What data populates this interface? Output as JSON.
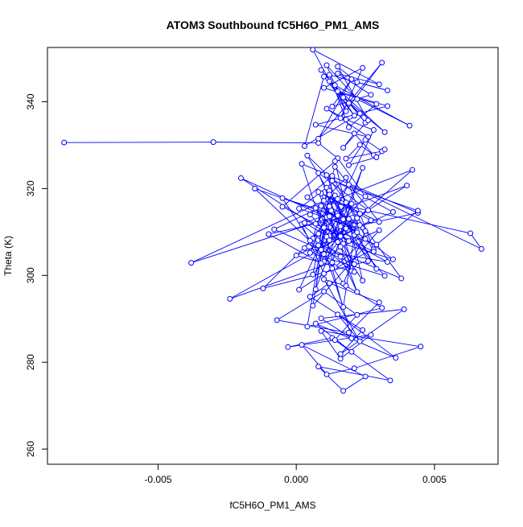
{
  "chart_data": {
    "type": "scatter",
    "title": "ATOM3 Southbound fC5H6O_PM1_AMS",
    "xlabel": "fC5H6O_PM1_AMS",
    "ylabel": "Theta (K)",
    "xlim": [
      -0.009,
      0.0073
    ],
    "ylim": [
      256.5,
      352.5
    ],
    "x_ticks": [
      -0.005,
      0.0,
      0.005
    ],
    "x_tick_labels": [
      "-0.005",
      "0.000",
      "0.005"
    ],
    "y_ticks": [
      260,
      280,
      300,
      320,
      340
    ],
    "y_tick_labels": [
      "260",
      "280",
      "300",
      "320",
      "340"
    ],
    "grid": false,
    "legend": "none",
    "connect_points": true,
    "marker": "open-circle",
    "color": "#0000ff",
    "series": [
      {
        "x": [
          -0.0084,
          -0.003,
          0.0008,
          0.0015,
          0.0025,
          0.0012,
          0.0005,
          0.0018,
          0.0028,
          0.001,
          0.0002,
          0.0016,
          0.0022,
          0.0009,
          0.003,
          0.0014,
          0.0006,
          0.002,
          0.0011,
          0.0001,
          0.0025,
          0.0017,
          0.0008,
          0.0035,
          0.0013,
          0.0004,
          0.0021,
          0.001,
          -0.0005,
          0.0019,
          0.0029,
          0.0012,
          0.0007,
          0.0024,
          0.0015,
          0.0003,
          0.004,
          0.0011,
          0.0018,
          0.0009,
          -0.001,
          0.0023,
          0.0014,
          0.0005,
          0.0032,
          0.0016,
          0.0008,
          0.0026,
          0.0012,
          0.0,
          0.0021,
          0.0015,
          -0.0038,
          0.001,
          0.0063,
          0.0067,
          0.0019,
          0.0007,
          0.0028,
          0.0013,
          0.0004,
          0.0022,
          0.0011,
          -0.002,
          0.0017,
          0.0035,
          0.0009,
          0.0025,
          0.0014,
          0.0002,
          0.0044,
          0.0018,
          0.001,
          -0.0015,
          0.0023,
          0.0012,
          0.0006,
          0.003,
          0.0016,
          0.0008,
          0.0027,
          -0.0024,
          0.0013,
          0.002,
          0.0005,
          0.0038,
          0.0011,
          0.0017,
          0.0009,
          0.0042,
          0.0015,
          -0.0008,
          0.0021,
          0.0012,
          0.0003,
          0.0033,
          0.0016,
          0.0007,
          0.0024,
          0.0014,
          -0.0005,
          0.0019,
          0.001,
          0.0029,
          0.0044,
          0.0013,
          0.0006,
          0.0022,
          0.0017,
          0.0008,
          -0.0012,
          0.0026,
          0.0012,
          0.0004,
          0.0031,
          0.0018,
          0.001,
          0.0023,
          0.0015,
          0.0036,
          0.0007,
          0.002,
          0.0013,
          -0.0003,
          0.0027,
          0.0016,
          0.0009,
          0.0045,
          0.0021,
          0.0011,
          0.0002,
          0.0025,
          0.0017,
          0.0008,
          0.0034,
          0.0014,
          0.0022,
          0.001,
          -0.0007,
          0.0019,
          0.003,
          0.0012,
          0.0005,
          0.0024,
          0.0016,
          0.0039,
          0.0009,
          0.002,
          0.0013,
          0.0001,
          0.0028,
          0.0018,
          0.0011,
          0.0026,
          0.0007,
          0.0033,
          0.0015,
          0.0021,
          0.001,
          0.0003,
          0.0023,
          0.0017,
          0.0032,
          0.0012,
          0.0019,
          0.0009,
          0.0025,
          0.0014,
          0.0041,
          0.0022,
          0.0011,
          0.0018,
          0.0006,
          0.003,
          0.0015,
          0.0027,
          0.0013,
          0.002,
          0.0008,
          0.0031,
          0.0016,
          0.0024,
          0.001,
          0.0029,
          0.0019,
          0.0012,
          0.0033,
          0.0022,
          0.0015,
          0.0026,
          0.0017,
          0.0021,
          0.0028,
          0.0023,
          0.0018,
          0.0031,
          0.0025,
          0.0019,
          0.0029,
          0.0032
        ],
        "y": [
          330.6,
          330.7,
          330.5,
          327.0,
          318.2,
          309.1,
          314.0,
          322.5,
          306.0,
          300.4,
          311.8,
          304.3,
          296.2,
          318.9,
          312.3,
          325.0,
          308.5,
          301.0,
          320.2,
          315.4,
          310.2,
          298.1,
          306.9,
          314.6,
          322.1,
          327.6,
          309.3,
          303.2,
          317.8,
          313.0,
          301.5,
          319.5,
          296.8,
          324.8,
          307.7,
          312.1,
          320.7,
          308.9,
          316.8,
          302.8,
          309.5,
          314.2,
          318.4,
          305.2,
          299.9,
          311.3,
          323.6,
          315.0,
          308.1,
          304.6,
          300.8,
          313.8,
          302.9,
          317.2,
          309.7,
          306.1,
          320.9,
          311.9,
          305.5,
          322.9,
          318.0,
          309.9,
          313.4,
          322.4,
          307.3,
          303.7,
          316.0,
          308.4,
          301.9,
          325.7,
          314.4,
          310.8,
          304.9,
          320.0,
          311.6,
          315.9,
          293.0,
          310.4,
          306.6,
          319.2,
          312.7,
          294.6,
          303.0,
          316.5,
          308.0,
          299.3,
          323.1,
          312.9,
          305.9,
          324.3,
          317.6,
          310.6,
          302.6,
          313.6,
          306.3,
          303.1,
          309.0,
          315.5,
          298.8,
          326.3,
          315.8,
          307.9,
          311.0,
          307.1,
          314.9,
          321.8,
          300.2,
          313.2,
          292.7,
          309.6,
          297.0,
          303.3,
          318.6,
          288.2,
          292.5,
          297.6,
          299.1,
          284.8,
          291.0,
          281.0,
          288.9,
          282.4,
          285.6,
          283.5,
          286.3,
          280.8,
          287.2,
          283.6,
          278.6,
          277.2,
          284.0,
          276.7,
          273.4,
          279.0,
          275.8,
          285.1,
          290.9,
          296.3,
          289.7,
          286.8,
          293.8,
          298.2,
          295.1,
          287.4,
          281.9,
          292.2,
          290.1,
          285.5,
          301.6,
          296.7,
          333.5,
          335.9,
          338.4,
          331.9,
          334.7,
          339.0,
          342.4,
          336.8,
          345.8,
          329.8,
          337.3,
          341.0,
          333.0,
          344.7,
          339.7,
          347.3,
          335.2,
          343.8,
          334.5,
          340.6,
          348.4,
          337.8,
          352.0,
          344.0,
          346.5,
          341.6,
          338.9,
          345.2,
          331.5,
          349.0,
          336.2,
          347.8,
          343.2,
          339.5,
          334.1,
          346.2,
          342.6,
          344.5,
          348.1,
          335.7,
          329.4,
          332.7,
          327.7,
          330.1,
          326.9,
          328.6,
          331.2,
          325.4,
          327.2,
          329.0
        ]
      }
    ]
  }
}
